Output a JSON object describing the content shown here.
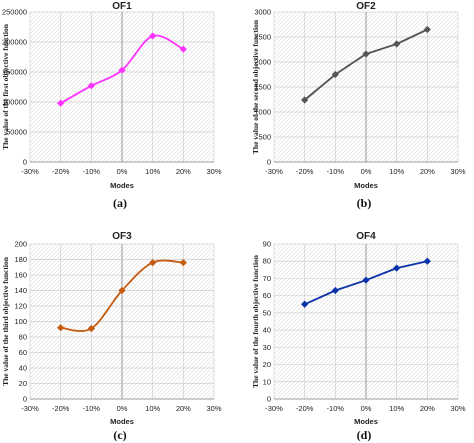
{
  "chart_data": [
    {
      "type": "line",
      "title": "OF1",
      "xlabel": "Modes",
      "ylabel": "The value of the first objective function",
      "panel_label": "(a)",
      "x_ticks": [
        "-30%",
        "-20%",
        "-10%",
        "0%",
        "10%",
        "20%",
        "30%"
      ],
      "y_ticks": [
        "0",
        "50000",
        "100000",
        "150000",
        "200000",
        "250000"
      ],
      "xlim": [
        -30,
        30
      ],
      "ylim": [
        0,
        250000
      ],
      "smooth": true,
      "grid": true,
      "series": [
        {
          "color": "#ff33ff",
          "marker": "diamond",
          "x": [
            -20,
            -10,
            0,
            10,
            20
          ],
          "values": [
            98000,
            127000,
            153000,
            210000,
            188000
          ]
        }
      ]
    },
    {
      "type": "line",
      "title": "OF2",
      "xlabel": "Modes",
      "ylabel": "The value of the second objective function",
      "panel_label": "(b)",
      "x_ticks": [
        "-30%",
        "-20%",
        "-10%",
        "0%",
        "10%",
        "20%",
        "30%"
      ],
      "y_ticks": [
        "0",
        "500",
        "1000",
        "1500",
        "2000",
        "2500",
        "3000"
      ],
      "xlim": [
        -30,
        30
      ],
      "ylim": [
        0,
        3000
      ],
      "smooth": false,
      "grid": true,
      "series": [
        {
          "color": "#555555",
          "marker": "diamond",
          "x": [
            -20,
            -10,
            0,
            10,
            20
          ],
          "values": [
            1240,
            1750,
            2160,
            2360,
            2650
          ]
        }
      ]
    },
    {
      "type": "line",
      "title": "OF3",
      "xlabel": "Modes",
      "ylabel": "The value of the third objective function",
      "panel_label": "(c)",
      "x_ticks": [
        "-30%",
        "-20%",
        "-10%",
        "0%",
        "10%",
        "20%",
        "30%"
      ],
      "y_ticks": [
        "0",
        "20",
        "40",
        "60",
        "80",
        "100",
        "120",
        "140",
        "160",
        "180",
        "200"
      ],
      "xlim": [
        -30,
        30
      ],
      "ylim": [
        0,
        200
      ],
      "smooth": true,
      "grid": true,
      "series": [
        {
          "color": "#c55a11",
          "marker": "diamond",
          "x": [
            -20,
            -10,
            0,
            10,
            20
          ],
          "values": [
            92,
            91,
            140,
            176,
            176
          ]
        }
      ]
    },
    {
      "type": "line",
      "title": "OF4",
      "xlabel": "Modes",
      "ylabel": "The value of the fourth objective function",
      "panel_label": "(d)",
      "x_ticks": [
        "-30%",
        "-20%",
        "-10%",
        "0%",
        "10%",
        "20%",
        "30%"
      ],
      "y_ticks": [
        "0",
        "10",
        "20",
        "30",
        "40",
        "50",
        "60",
        "70",
        "80",
        "90"
      ],
      "xlim": [
        -30,
        30
      ],
      "ylim": [
        0,
        90
      ],
      "smooth": false,
      "grid": true,
      "series": [
        {
          "color": "#0b32a8",
          "marker": "diamond",
          "x": [
            -20,
            -10,
            0,
            10,
            20
          ],
          "values": [
            55,
            63,
            69,
            76,
            80
          ]
        }
      ]
    }
  ]
}
